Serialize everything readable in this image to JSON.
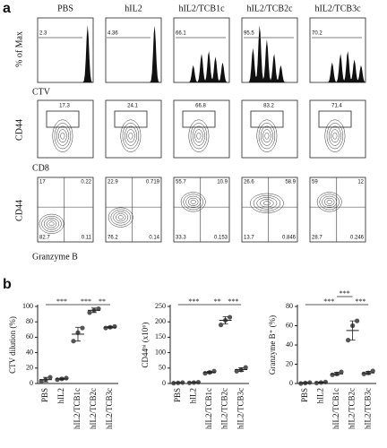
{
  "panel_a": {
    "label": "a",
    "columns": [
      "PBS",
      "hIL2",
      "hIL2/TCB1c",
      "hIL2/TCB2c",
      "hIL2/TCB3c"
    ],
    "histogram": {
      "y_label": "% of Max",
      "x_label": "CTV",
      "gates": [
        "2.3",
        "4.36",
        "66.1",
        "95.5",
        "70.2"
      ]
    },
    "cd44_ctv": {
      "y_label": "CD44",
      "x_label": "CD8",
      "gates": [
        "17.3",
        "24.1",
        "66.8",
        "83.2",
        "71.4"
      ]
    },
    "quadrants": {
      "y_label": "CD44",
      "x_label": "Granzyme B",
      "values": [
        [
          "17",
          "0.22",
          "82.7",
          "0.11"
        ],
        [
          "22.9",
          "0.719",
          "76.2",
          "0.14"
        ],
        [
          "55.7",
          "10.9",
          "33.3",
          "0.153"
        ],
        [
          "26.6",
          "58.9",
          "13.7",
          "0.846"
        ],
        [
          "59",
          "12",
          "28.7",
          "0.246"
        ]
      ]
    }
  },
  "panel_b": {
    "label": "b"
  },
  "chart_data": [
    {
      "type": "dot",
      "y_label": "CTV dilution (%)",
      "categories": [
        "PBS",
        "hIL2",
        "hIL2/TCB1c",
        "hIL2/TCB2c",
        "hIL2/TCB3c"
      ],
      "points": [
        [
          3,
          5,
          8
        ],
        [
          5,
          6,
          7
        ],
        [
          55,
          66,
          72
        ],
        [
          92,
          95,
          97
        ],
        [
          72,
          73,
          74
        ]
      ],
      "means": [
        5,
        6,
        64,
        95,
        73
      ],
      "errors": [
        3,
        1,
        9,
        3,
        1
      ],
      "color": "#555555",
      "ylim": [
        0,
        100
      ],
      "yticks": [
        0,
        20,
        40,
        60,
        80,
        100
      ],
      "significance": [
        {
          "from": "PBS",
          "to": "hIL2/TCB1c",
          "label": "***"
        },
        {
          "from": "hIL2/TCB1c",
          "to": "hIL2/TCB2c",
          "label": "***"
        },
        {
          "from": "hIL2/TCB2c",
          "to": "hIL2/TCB3c",
          "label": "**"
        }
      ]
    },
    {
      "type": "dot",
      "y_label": "CD44ʰⁱ (x10⁶)",
      "categories": [
        "PBS",
        "hIL2",
        "hIL2/TCB1c",
        "hIL2/TCB2c",
        "hIL2/TCB3c"
      ],
      "points": [
        [
          1,
          2,
          3
        ],
        [
          2,
          3,
          4
        ],
        [
          33,
          36,
          40
        ],
        [
          190,
          205,
          215
        ],
        [
          40,
          44,
          52
        ]
      ],
      "means": [
        2,
        3,
        36,
        205,
        45
      ],
      "errors": [
        1,
        1,
        3,
        12,
        6
      ],
      "color": "#555555",
      "ylim": [
        0,
        250
      ],
      "yticks": [
        0,
        50,
        100,
        150,
        200,
        250
      ],
      "significance": [
        {
          "from": "PBS",
          "to": "hIL2/TCB1c",
          "label": "***"
        },
        {
          "from": "hIL2/TCB1c",
          "to": "hIL2/TCB2c",
          "label": "**"
        },
        {
          "from": "hIL2/TCB2c",
          "to": "hIL2/TCB3c",
          "label": "***"
        }
      ]
    },
    {
      "type": "dot",
      "y_label": "Granzyme B⁺ (%)",
      "categories": [
        "PBS",
        "hIL2",
        "hIL2/TCB1c",
        "hIL2/TCB2c",
        "hIL2/TCB3c"
      ],
      "points": [
        [
          0,
          0.5,
          1
        ],
        [
          0.5,
          1,
          1.5
        ],
        [
          9,
          10,
          12
        ],
        [
          45,
          60,
          65
        ],
        [
          10,
          11,
          13
        ]
      ],
      "means": [
        0.5,
        1,
        10,
        55,
        11
      ],
      "errors": [
        0.5,
        0.5,
        1.5,
        10,
        1.5
      ],
      "color": "#555555",
      "ylim": [
        0,
        80
      ],
      "yticks": [
        0,
        20,
        40,
        60,
        80
      ],
      "significance": [
        {
          "from": "PBS",
          "to": "hIL2/TCB2c",
          "label": "***"
        },
        {
          "from": "hIL2/TCB1c",
          "to": "hIL2/TCB2c",
          "label": "***"
        },
        {
          "from": "hIL2/TCB2c",
          "to": "hIL2/TCB3c",
          "label": "***"
        }
      ]
    }
  ]
}
